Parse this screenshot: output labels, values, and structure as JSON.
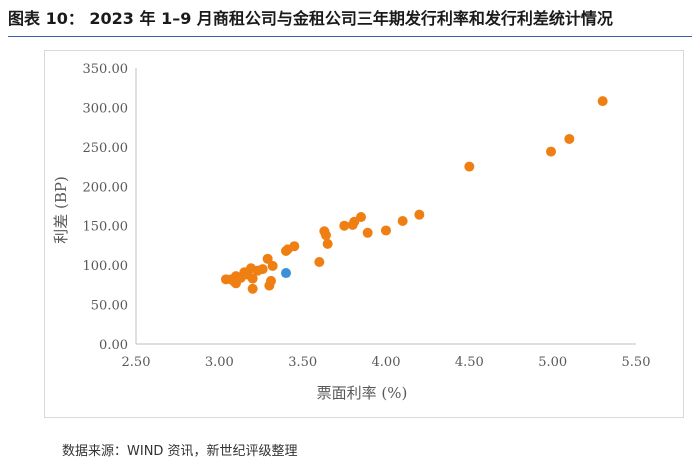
{
  "figure": {
    "title": "图表 10： 2023 年 1–9 月商租公司与金租公司三年期发行利率和发行利差统计情况",
    "source": "数据来源：WIND 资讯，新世纪评级整理"
  },
  "chart_data": {
    "type": "scatter",
    "xlabel": "票面利率 (%)",
    "ylabel": "利差 (BP)",
    "xlim": [
      2.5,
      5.5
    ],
    "ylim": [
      0,
      350
    ],
    "xticks": [
      "2.50",
      "3.00",
      "3.50",
      "4.00",
      "4.50",
      "5.00",
      "5.50"
    ],
    "yticks": [
      "0.00",
      "50.00",
      "100.00",
      "150.00",
      "200.00",
      "250.00",
      "300.00",
      "350.00"
    ],
    "grid": "none",
    "legend": "none",
    "series": [
      {
        "color": "#f07f13",
        "points": [
          [
            3.04,
            82
          ],
          [
            3.07,
            82
          ],
          [
            3.09,
            79
          ],
          [
            3.1,
            86
          ],
          [
            3.1,
            77
          ],
          [
            3.13,
            84
          ],
          [
            3.15,
            91
          ],
          [
            3.17,
            88
          ],
          [
            3.19,
            96
          ],
          [
            3.2,
            83
          ],
          [
            3.2,
            70
          ],
          [
            3.23,
            93
          ],
          [
            3.26,
            95
          ],
          [
            3.29,
            108
          ],
          [
            3.3,
            74
          ],
          [
            3.31,
            80
          ],
          [
            3.32,
            99
          ],
          [
            3.4,
            118
          ],
          [
            3.41,
            120
          ],
          [
            3.45,
            124
          ],
          [
            3.6,
            104
          ],
          [
            3.63,
            143
          ],
          [
            3.64,
            138
          ],
          [
            3.65,
            127
          ],
          [
            3.75,
            150
          ],
          [
            3.8,
            151
          ],
          [
            3.81,
            155
          ],
          [
            3.85,
            161
          ],
          [
            3.89,
            141
          ],
          [
            4.0,
            144
          ],
          [
            4.1,
            156
          ],
          [
            4.2,
            164
          ],
          [
            4.5,
            225
          ],
          [
            4.99,
            244
          ],
          [
            5.1,
            260
          ],
          [
            5.3,
            308
          ]
        ]
      },
      {
        "color": "#3d8fd6",
        "points": [
          [
            3.4,
            90
          ]
        ]
      }
    ]
  }
}
